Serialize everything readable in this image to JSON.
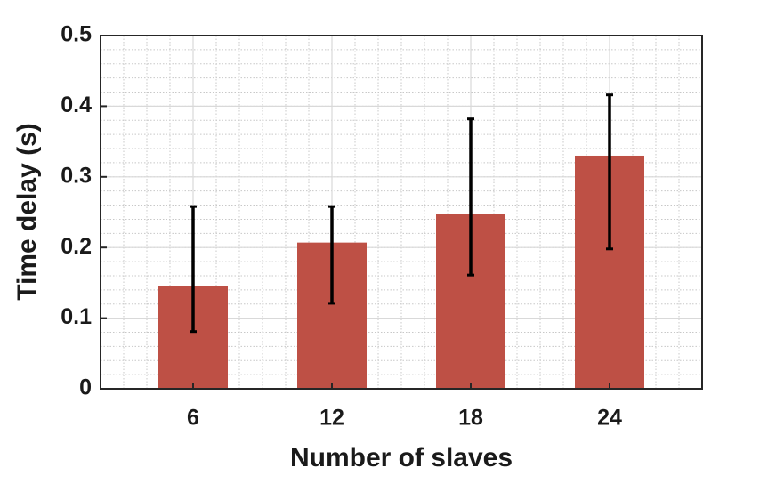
{
  "chart_data": {
    "type": "bar",
    "x_label": "Number of slaves",
    "y_label": "Time delay (s)",
    "x": [
      6,
      12,
      18,
      24
    ],
    "values": [
      0.146,
      0.207,
      0.247,
      0.33
    ],
    "error_lower": [
      0.081,
      0.121,
      0.161,
      0.198
    ],
    "error_upper": [
      0.258,
      0.258,
      0.382,
      0.416
    ],
    "color": "#be5045",
    "error_color": "#000000",
    "xlim": [
      2,
      28
    ],
    "xticks": [
      6,
      12,
      18,
      24
    ],
    "ylim": [
      0,
      0.5
    ],
    "yticks": [
      0,
      0.1,
      0.2,
      0.3,
      0.4,
      0.5
    ],
    "grid": true,
    "minor_grid": true
  }
}
